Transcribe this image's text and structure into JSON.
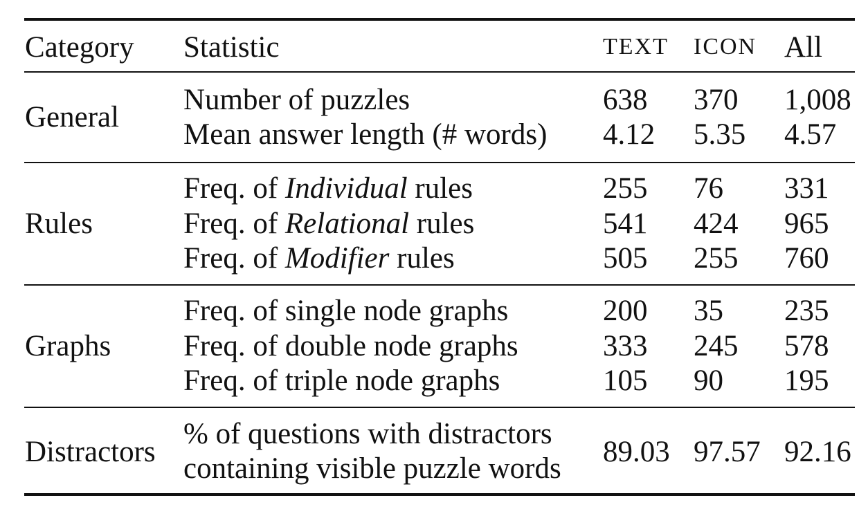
{
  "table": {
    "headers": {
      "category": "Category",
      "statistic": "Statistic",
      "text": "TEXT",
      "icon": "ICON",
      "all": "All"
    },
    "groups": [
      {
        "category": "General",
        "rows": [
          {
            "stat_pre": "Number of puzzles",
            "stat_em": "",
            "stat_post": "",
            "text": "638",
            "icon": "370",
            "all": "1,008"
          },
          {
            "stat_pre": "Mean answer length (# words)",
            "stat_em": "",
            "stat_post": "",
            "text": "4.12",
            "icon": "5.35",
            "all": "4.57"
          }
        ]
      },
      {
        "category": "Rules",
        "rows": [
          {
            "stat_pre": "Freq. of ",
            "stat_em": "Individual",
            "stat_post": " rules",
            "text": "255",
            "icon": "76",
            "all": "331"
          },
          {
            "stat_pre": "Freq. of ",
            "stat_em": "Relational",
            "stat_post": " rules",
            "text": "541",
            "icon": "424",
            "all": "965"
          },
          {
            "stat_pre": "Freq. of ",
            "stat_em": "Modifier",
            "stat_post": " rules",
            "text": "505",
            "icon": "255",
            "all": "760"
          }
        ]
      },
      {
        "category": "Graphs",
        "rows": [
          {
            "stat_pre": "Freq. of single node graphs",
            "stat_em": "",
            "stat_post": "",
            "text": "200",
            "icon": "35",
            "all": "235"
          },
          {
            "stat_pre": "Freq. of double node graphs",
            "stat_em": "",
            "stat_post": "",
            "text": "333",
            "icon": "245",
            "all": "578"
          },
          {
            "stat_pre": "Freq. of triple node graphs",
            "stat_em": "",
            "stat_post": "",
            "text": "105",
            "icon": "90",
            "all": "195"
          }
        ]
      },
      {
        "category": "Distractors",
        "stat_lines": [
          "% of questions with distractors",
          "containing visible puzzle words"
        ],
        "text": "89.03",
        "icon": "97.57",
        "all": "92.16"
      }
    ]
  }
}
